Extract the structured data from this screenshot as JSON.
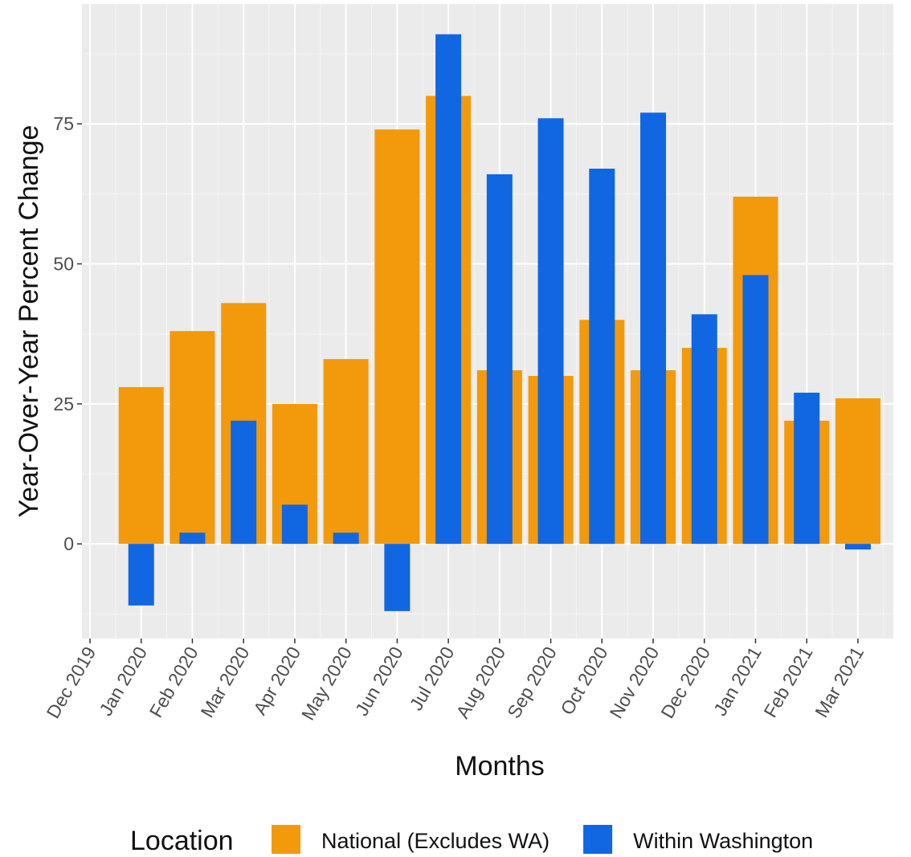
{
  "chart_data": {
    "type": "bar",
    "x_label": "Months",
    "y_label": "Year-Over-Year Percent Change",
    "categories": [
      "Dec 2019",
      "Jan 2020",
      "Feb 2020",
      "Mar 2020",
      "Apr 2020",
      "May 2020",
      "Jun 2020",
      "Jul 2020",
      "Aug 2020",
      "Sep 2020",
      "Oct 2020",
      "Nov 2020",
      "Dec 2020",
      "Jan 2021",
      "Feb 2021",
      "Mar 2021"
    ],
    "legend_title": "Location",
    "series": [
      {
        "name": "National (Excludes WA)",
        "color": "#f29a0b",
        "values": [
          null,
          28,
          38,
          43,
          25,
          33,
          74,
          80,
          31,
          30,
          40,
          31,
          35,
          62,
          22,
          26
        ]
      },
      {
        "name": "Within Washington",
        "color": "#1166e2",
        "values": [
          null,
          -11,
          2,
          22,
          7,
          2,
          -12,
          91,
          66,
          76,
          67,
          77,
          41,
          48,
          27,
          -1
        ]
      }
    ],
    "ylim": [
      -16.9,
      96.4
    ],
    "yticks": [
      0,
      25,
      50,
      75
    ],
    "grid": true,
    "legend_position": "bottom"
  }
}
